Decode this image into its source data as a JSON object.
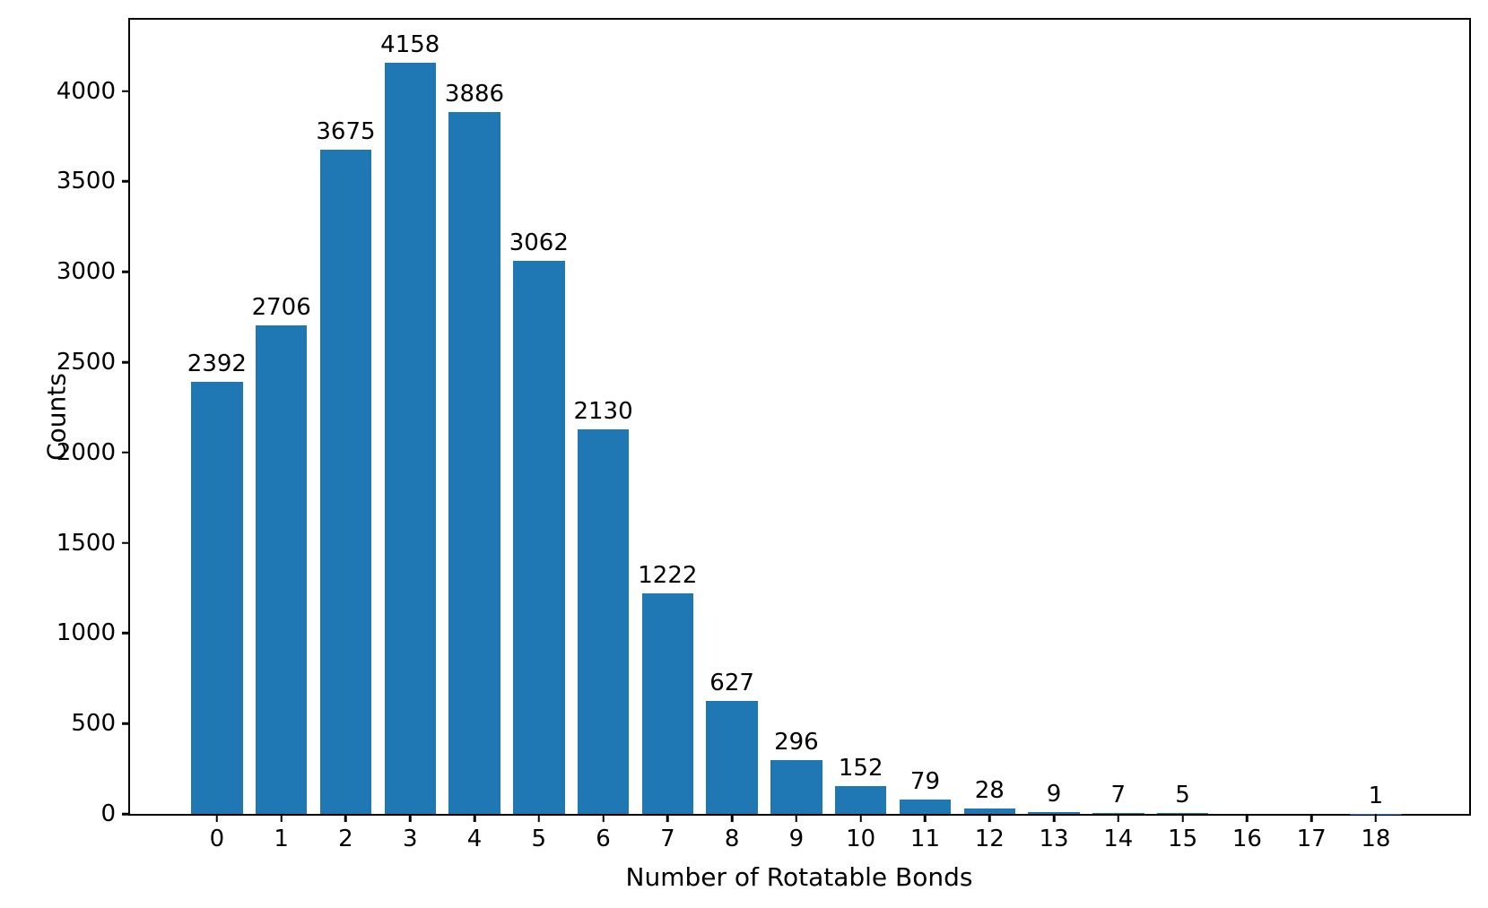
{
  "chart_data": {
    "type": "bar",
    "title": "",
    "xlabel": "Number of Rotatable Bonds",
    "ylabel": "Counts",
    "categories": [
      "0",
      "1",
      "2",
      "3",
      "4",
      "5",
      "6",
      "7",
      "8",
      "9",
      "10",
      "11",
      "12",
      "13",
      "14",
      "15",
      "16",
      "17",
      "18"
    ],
    "values": [
      2392,
      2706,
      3675,
      4158,
      3886,
      3062,
      2130,
      1222,
      627,
      296,
      152,
      79,
      28,
      9,
      7,
      5,
      0,
      0,
      1
    ],
    "bar_labels": [
      "2392",
      "2706",
      "3675",
      "4158",
      "3886",
      "3062",
      "2130",
      "1222",
      "627",
      "296",
      "152",
      "79",
      "28",
      "9",
      "7",
      "5",
      "",
      "",
      "1"
    ],
    "yticks": [
      0,
      500,
      1000,
      1500,
      2000,
      2500,
      3000,
      3500,
      4000
    ],
    "ylim": [
      0,
      4395
    ],
    "xlim": [
      -1.35,
      19.45
    ],
    "bar_width_units": 0.8,
    "bar_color": "#1f77b4",
    "axis_color": "#000000",
    "grid": false,
    "legend": null
  }
}
